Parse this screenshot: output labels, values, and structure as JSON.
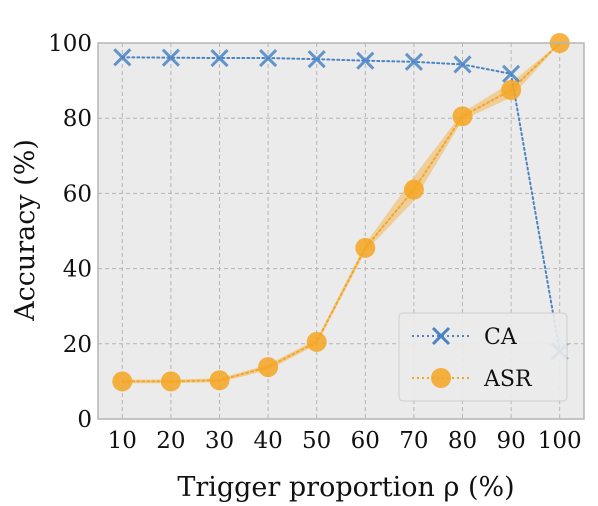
{
  "chart_data": {
    "type": "line",
    "title": "",
    "xlabel": "Trigger proportion ρ (%)",
    "ylabel": "Accuracy (%)",
    "categories": [
      "10",
      "20",
      "30",
      "40",
      "50",
      "60",
      "70",
      "80",
      "90",
      "100"
    ],
    "x": [
      10,
      20,
      30,
      40,
      50,
      60,
      70,
      80,
      90,
      100
    ],
    "xlim": [
      5,
      105
    ],
    "ylim": [
      0,
      100
    ],
    "yticks": [
      "0",
      "20",
      "40",
      "60",
      "80",
      "100"
    ],
    "grid": true,
    "legend_position": "bottom-right",
    "series": [
      {
        "name": "CA",
        "marker": "x",
        "line_style": "dotted",
        "color": "#4a84c4",
        "values": [
          96.2,
          96.1,
          96.0,
          96.0,
          95.7,
          95.3,
          95.0,
          94.3,
          91.8,
          18.0
        ]
      },
      {
        "name": "ASR",
        "marker": "circle",
        "line_style": "dotted",
        "color": "#f5a623",
        "band_color": "#f0c070",
        "values": [
          10.0,
          10.0,
          10.3,
          13.8,
          20.5,
          45.5,
          61.0,
          80.5,
          87.5,
          100.0
        ],
        "band_low": [
          9.5,
          9.5,
          9.8,
          13.0,
          19.8,
          44.5,
          58.0,
          79.5,
          85.5,
          99.8
        ],
        "band_high": [
          10.5,
          10.5,
          10.8,
          14.5,
          21.2,
          46.5,
          64.5,
          81.5,
          89.5,
          100.0
        ]
      }
    ]
  }
}
